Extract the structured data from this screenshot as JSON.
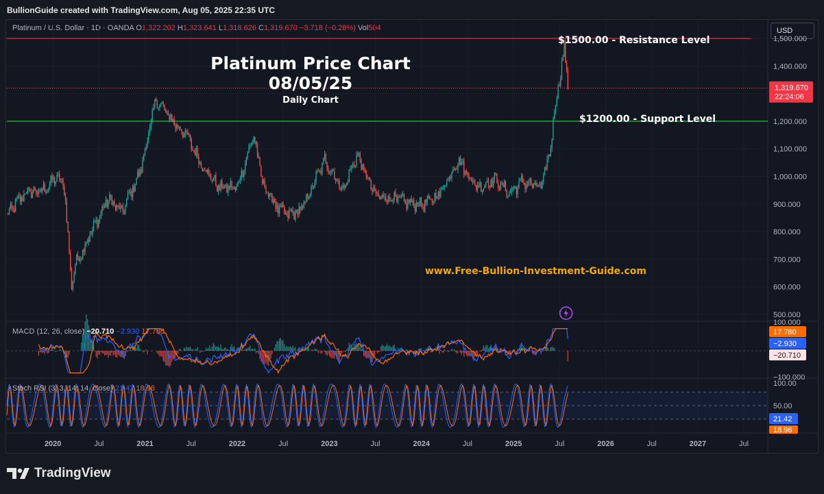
{
  "header": {
    "text": "BullionGuide created with TradingView.com, Aug 05, 2025 22:35 UTC"
  },
  "legend": {
    "symbol": "Platinum / U.S. Dollar · 1D · OANDA",
    "o_label": "O",
    "o": "1,322.202",
    "h_label": "H",
    "h": "1,323.641",
    "l_label": "L",
    "l": "1,318.626",
    "c_label": "C",
    "c": "1,319.670",
    "change": "−3.718 (−0.28%)",
    "vol_label": "Vol",
    "vol": "504"
  },
  "currency_button": "USD",
  "title": {
    "line1": "Platinum Price Chart",
    "line2": "08/05/25",
    "line3": "Daily Chart"
  },
  "annotations": {
    "resistance": "$1500.00 - Resistance Level",
    "support": "$1200.00 - Support Level",
    "website": "www.Free-Bullion-Investment-Guide.com"
  },
  "price_tag": {
    "value": "1,319.670",
    "countdown": "22:24:06"
  },
  "macd": {
    "label": "MACD (12, 26, close)",
    "v1": "−20.710",
    "v2": "−2.930",
    "v3": "17.780",
    "tag_orange": "17.780",
    "tag_blue": "−2.930",
    "tag_white": "−20.710",
    "axis_top": "100.000",
    "axis_bottom": "−100.000"
  },
  "stoch": {
    "label": "Stoch RSI (3, 3, 14, 14, close)",
    "v1": "21.42",
    "v2": "18.96",
    "tag_blue": "21.42",
    "tag_orange": "18.96"
  },
  "footer": {
    "brand": "TradingView"
  },
  "colors": {
    "up": "#26a69a",
    "down": "#ef5350",
    "resistance": "#f23645",
    "support": "#2fd33a",
    "accent": "#f5a800"
  },
  "chart_data": {
    "type": "candlestick",
    "title": "Platinum Price Chart 08/05/25 — Daily Chart",
    "ylabel": "USD",
    "ylim": [
      480,
      1520
    ],
    "y_ticks": [
      "1,500.000",
      "1,400.000",
      "1,300.000",
      "1,200.000",
      "1,100.000",
      "1,000.000",
      "900.000",
      "800.000",
      "700.000",
      "600.000",
      "500.000"
    ],
    "x_ticks": [
      "2020",
      "Jul",
      "2021",
      "Jul",
      "2022",
      "Jul",
      "2023",
      "Jul",
      "2024",
      "Jul",
      "2025",
      "Jul",
      "2026",
      "Jul",
      "2027",
      "Jul"
    ],
    "horizontal_lines": [
      {
        "label": "Resistance",
        "value": 1500
      },
      {
        "label": "Support",
        "value": 1200
      }
    ],
    "last_price": 1319.67,
    "anchors": [
      {
        "t": 2019.5,
        "v": 860
      },
      {
        "t": 2019.7,
        "v": 940
      },
      {
        "t": 2019.9,
        "v": 950
      },
      {
        "t": 2020.05,
        "v": 1000
      },
      {
        "t": 2020.13,
        "v": 950
      },
      {
        "t": 2020.2,
        "v": 600
      },
      {
        "t": 2020.24,
        "v": 680
      },
      {
        "t": 2020.45,
        "v": 820
      },
      {
        "t": 2020.6,
        "v": 920
      },
      {
        "t": 2020.75,
        "v": 870
      },
      {
        "t": 2020.95,
        "v": 1020
      },
      {
        "t": 2021.12,
        "v": 1280
      },
      {
        "t": 2021.3,
        "v": 1200
      },
      {
        "t": 2021.45,
        "v": 1150
      },
      {
        "t": 2021.6,
        "v": 1050
      },
      {
        "t": 2021.8,
        "v": 960
      },
      {
        "t": 2022.0,
        "v": 960
      },
      {
        "t": 2022.18,
        "v": 1150
      },
      {
        "t": 2022.28,
        "v": 970
      },
      {
        "t": 2022.45,
        "v": 880
      },
      {
        "t": 2022.55,
        "v": 860
      },
      {
        "t": 2022.7,
        "v": 880
      },
      {
        "t": 2022.95,
        "v": 1060
      },
      {
        "t": 2023.15,
        "v": 950
      },
      {
        "t": 2023.3,
        "v": 1080
      },
      {
        "t": 2023.5,
        "v": 930
      },
      {
        "t": 2023.7,
        "v": 920
      },
      {
        "t": 2023.9,
        "v": 900
      },
      {
        "t": 2024.05,
        "v": 900
      },
      {
        "t": 2024.2,
        "v": 940
      },
      {
        "t": 2024.4,
        "v": 1060
      },
      {
        "t": 2024.6,
        "v": 960
      },
      {
        "t": 2024.8,
        "v": 990
      },
      {
        "t": 2024.95,
        "v": 940
      },
      {
        "t": 2025.1,
        "v": 980
      },
      {
        "t": 2025.3,
        "v": 960
      },
      {
        "t": 2025.4,
        "v": 1100
      },
      {
        "t": 2025.45,
        "v": 1250
      },
      {
        "t": 2025.52,
        "v": 1400
      },
      {
        "t": 2025.55,
        "v": 1460
      },
      {
        "t": 2025.57,
        "v": 1400
      },
      {
        "t": 2025.59,
        "v": 1320
      }
    ],
    "macd": {
      "ylim": [
        -100,
        100
      ],
      "last": {
        "macd": -20.71,
        "signal": -2.93,
        "hist": 17.78
      }
    },
    "stoch_rsi": {
      "ylim": [
        0,
        100
      ],
      "bands": [
        80,
        50,
        20
      ],
      "last": {
        "k": 21.42,
        "d": 18.96
      }
    }
  }
}
